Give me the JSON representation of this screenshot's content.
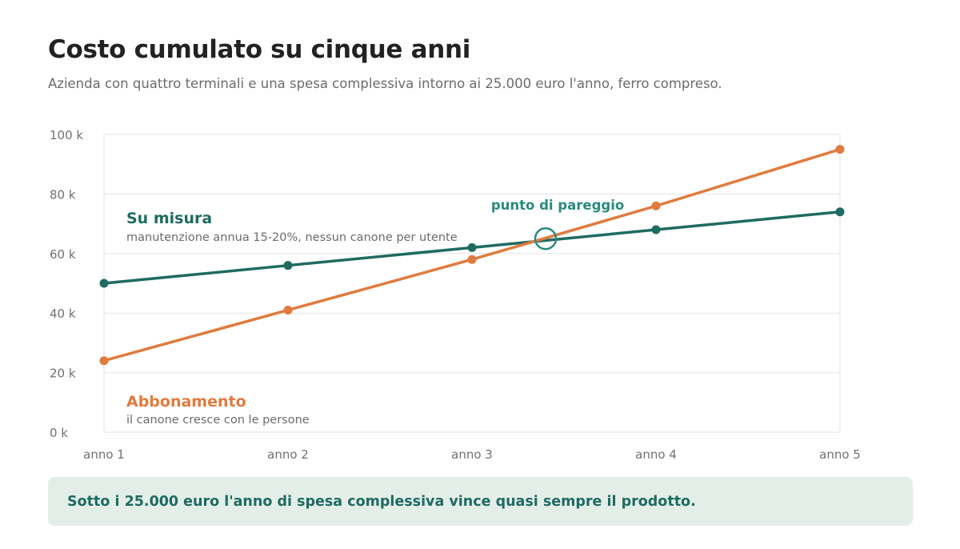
{
  "header": {
    "title": "Costo cumulato su cinque anni",
    "subtitle": "Azienda con quattro terminali e una spesa complessiva intorno ai 25.000 euro l'anno, ferro compreso."
  },
  "chart_data": {
    "type": "line",
    "title": "Costo cumulato su cinque anni",
    "subtitle": "Azienda con quattro terminali e una spesa complessiva intorno ai 25.000 euro l'anno, ferro compreso.",
    "categories": [
      "anno 1",
      "anno 2",
      "anno 3",
      "anno 4",
      "anno 5"
    ],
    "ylim": [
      0,
      100
    ],
    "y_ticks": [
      0,
      20,
      40,
      60,
      80,
      100
    ],
    "y_tick_labels": [
      "0 k",
      "20 k",
      "40 k",
      "60 k",
      "80 k",
      "100 k"
    ],
    "grid": true,
    "series": [
      {
        "name": "Su misura",
        "note": "manutenzione annua 15-20%, nessun canone per utente",
        "values": [
          50,
          56,
          62,
          68,
          74
        ],
        "color": "#1e6b61"
      },
      {
        "name": "Abbonamento",
        "note": "il canone cresce con le persone",
        "values": [
          24,
          41,
          58,
          76,
          95
        ],
        "color": "#e07b3f"
      }
    ],
    "annotations": [
      {
        "text": "punto di pareggio",
        "x": 3.4,
        "y": 65,
        "color": "#2a8a7d"
      }
    ]
  },
  "callout": {
    "text": "Sotto i 25.000 euro l'anno di spesa complessiva vince quasi sempre il prodotto."
  }
}
